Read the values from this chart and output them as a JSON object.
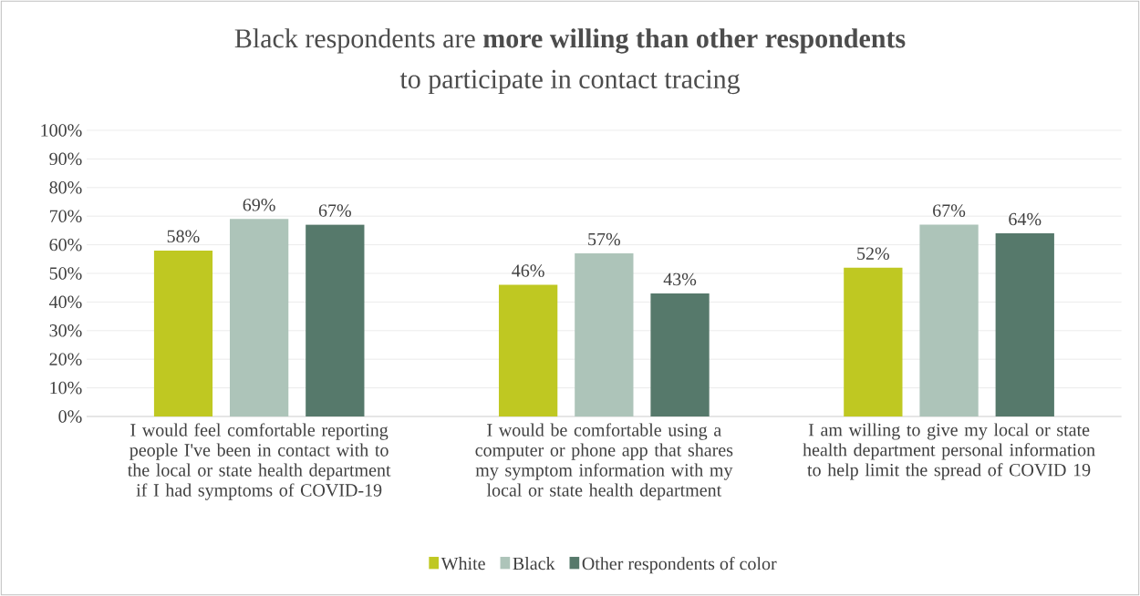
{
  "chart_data": {
    "type": "bar",
    "title": "Black respondents are **more willing than other respondents**",
    "subtitle": "to participate in contact tracing",
    "categories": [
      "I would feel comfortable reporting people I've been in contact with to the local or state health department if I had symptoms of COVID-19",
      "I would be comfortable using a computer or phone app that shares my symptom information with my local or state health department",
      "I am willing to give my local or state health department personal information to help limit the spread of COVID 19"
    ],
    "series": [
      {
        "name": "White",
        "color": "#bfc822",
        "values": [
          58,
          46,
          52
        ],
        "value_labels": [
          "58%",
          "46%",
          "52%"
        ]
      },
      {
        "name": "Black",
        "color": "#adc4b9",
        "values": [
          69,
          57,
          67
        ],
        "value_labels": [
          "69%",
          "57%",
          "67%"
        ]
      },
      {
        "name": "Other respondents of color",
        "color": "#56796b",
        "values": [
          67,
          43,
          64
        ],
        "value_labels": [
          "67%",
          "43%",
          "64%"
        ]
      }
    ],
    "ylim": [
      0,
      100
    ],
    "yticks": [
      {
        "value": 0,
        "label": "0%"
      },
      {
        "value": 10,
        "label": "10%"
      },
      {
        "value": 20,
        "label": "20%"
      },
      {
        "value": 30,
        "label": "30%"
      },
      {
        "value": 40,
        "label": "40%"
      },
      {
        "value": 50,
        "label": "50%"
      },
      {
        "value": 60,
        "label": "60%"
      },
      {
        "value": 70,
        "label": "70%"
      },
      {
        "value": 80,
        "label": "80%"
      },
      {
        "value": 90,
        "label": "90%"
      },
      {
        "value": 100,
        "label": "100%"
      }
    ],
    "grid": "y",
    "legend": "bottom"
  }
}
